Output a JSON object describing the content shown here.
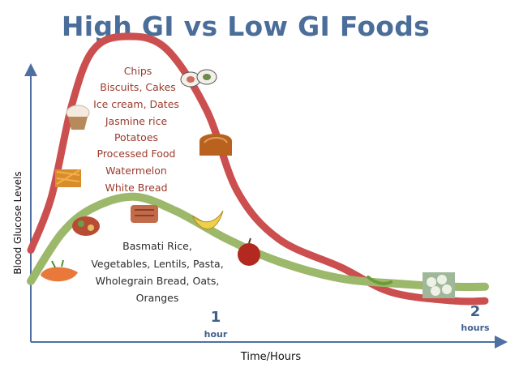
{
  "chart_data": {
    "type": "line",
    "title": "High GI vs Low GI Foods",
    "xlabel": "Time/Hours",
    "ylabel": "Blood Glucose Levels",
    "xlim": [
      0,
      2.2
    ],
    "ylim": [
      0,
      10
    ],
    "x_ticks": [
      {
        "value": 1,
        "number": "1",
        "unit": "hour"
      },
      {
        "value": 2,
        "number": "2",
        "unit": "hours"
      }
    ],
    "series": [
      {
        "color": "#cc4f4f",
        "points": [
          [
            0,
            2.4
          ],
          [
            0.1,
            4.3
          ],
          [
            0.2,
            7.6
          ],
          [
            0.3,
            9.5
          ],
          [
            0.45,
            10.0
          ],
          [
            0.65,
            9.6
          ],
          [
            0.85,
            7.4
          ],
          [
            1.0,
            4.5
          ],
          [
            1.2,
            2.8
          ],
          [
            1.5,
            1.8
          ],
          [
            1.75,
            0.9
          ],
          [
            2.05,
            0.6
          ],
          [
            2.2,
            0.6
          ]
        ]
      },
      {
        "color": "#9cb86a",
        "points": [
          [
            0,
            1.3
          ],
          [
            0.15,
            3.0
          ],
          [
            0.3,
            3.9
          ],
          [
            0.5,
            4.3
          ],
          [
            0.7,
            3.8
          ],
          [
            0.95,
            2.8
          ],
          [
            1.2,
            2.0
          ],
          [
            1.5,
            1.4
          ],
          [
            1.8,
            1.2
          ],
          [
            2.05,
            1.1
          ],
          [
            2.2,
            1.1
          ]
        ]
      }
    ],
    "annotations": {
      "high_gi_foods": [
        "Chips",
        "Biscuits, Cakes",
        "Ice cream, Dates",
        "Jasmine rice",
        "Potatoes",
        "Processed Food",
        "Watermelon",
        "White Bread"
      ],
      "low_gi_foods": [
        "Basmati Rice,",
        "Vegetables, Lentils, Pasta,",
        "Wholegrain Bread, Oats,",
        "Oranges"
      ]
    },
    "grid": false,
    "legend": "none"
  },
  "colors": {
    "title": "#4a6e99",
    "axis": "#4f6fa3",
    "high_gi_text": "#9b3a2c",
    "low_gi_text": "#2b2b2b",
    "tick_text": "#3f5f8c"
  },
  "food_icons": [
    "carrot-icon",
    "fries-icon",
    "cupcake-icon",
    "sushi-icon",
    "bread-icon",
    "salad-icon",
    "sweet-potato-icon",
    "banana-icon",
    "apple-icon",
    "green-bean-icon",
    "cauliflower-icon"
  ]
}
